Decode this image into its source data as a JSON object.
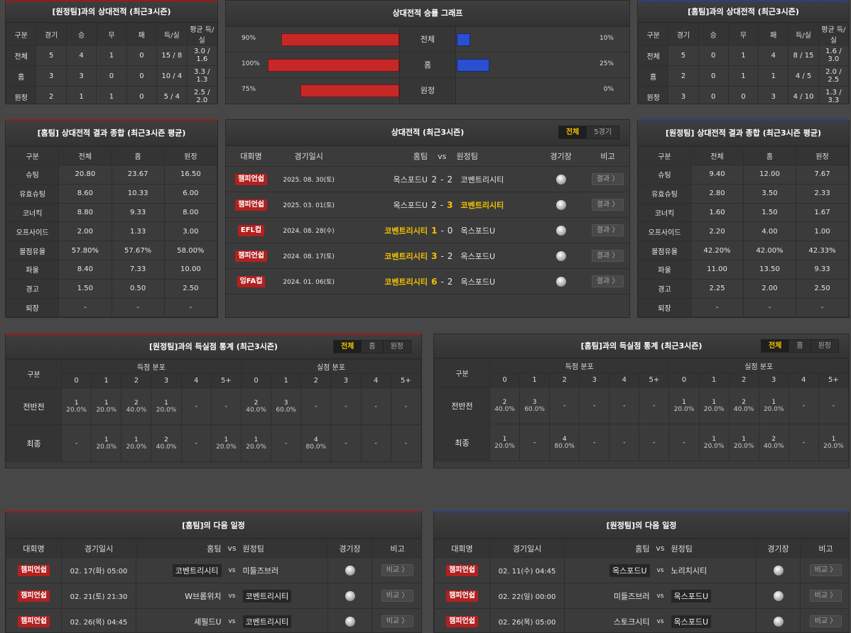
{
  "away_h2h": {
    "title": "[원정팀]과의 상대전적 (최근3시즌)",
    "headers": [
      "구분",
      "경기",
      "승",
      "무",
      "패",
      "득/실",
      "평균 득/실"
    ],
    "rows": [
      [
        "전체",
        "5",
        "4",
        "1",
        "0",
        "15 / 8",
        "3.0 / 1.6"
      ],
      [
        "홈",
        "3",
        "3",
        "0",
        "0",
        "10 / 4",
        "3.3 / 1.3"
      ],
      [
        "원정",
        "2",
        "1",
        "1",
        "0",
        "5 / 4",
        "2.5 / 2.0"
      ]
    ]
  },
  "home_h2h": {
    "title": "[홈팀]과의 상대전적 (최근3시즌)",
    "headers": [
      "구분",
      "경기",
      "승",
      "무",
      "패",
      "득/실",
      "평균 득/실"
    ],
    "rows": [
      [
        "전체",
        "5",
        "0",
        "1",
        "4",
        "8 / 15",
        "1.6 / 3.0"
      ],
      [
        "홈",
        "2",
        "0",
        "1",
        "1",
        "4 / 5",
        "2.0 / 2.5"
      ],
      [
        "원정",
        "3",
        "0",
        "0",
        "3",
        "4 / 10",
        "1.3 / 3.3"
      ]
    ]
  },
  "graph": {
    "title": "상대전적 승률 그래프",
    "colors": {
      "left": "#c62828",
      "right": "#2a4fcf"
    },
    "rows": [
      {
        "label": "전체",
        "left": "90%",
        "right": "10%",
        "left_val": 90,
        "right_val": 10
      },
      {
        "label": "홈",
        "left": "100%",
        "right": "25%",
        "left_val": 100,
        "right_val": 25
      },
      {
        "label": "원정",
        "left": "75%",
        "right": "0%",
        "left_val": 75,
        "right_val": 0
      }
    ]
  },
  "home_summary": {
    "title": "[홈팀] 상대전적 결과 종합 (최근3시즌 평균)",
    "headers": [
      "구분",
      "전체",
      "홈",
      "원정"
    ],
    "rows": [
      [
        "슈팅",
        "20.80",
        "23.67",
        "16.50"
      ],
      [
        "유효슈팅",
        "8.60",
        "10.33",
        "6.00"
      ],
      [
        "코너킥",
        "8.80",
        "9.33",
        "8.00"
      ],
      [
        "오프사이드",
        "2.00",
        "1.33",
        "3.00"
      ],
      [
        "볼점유율",
        "57.80%",
        "57.67%",
        "58.00%"
      ],
      [
        "파울",
        "8.40",
        "7.33",
        "10.00"
      ],
      [
        "경고",
        "1.50",
        "0.50",
        "2.50"
      ],
      [
        "퇴장",
        "-",
        "-",
        "-"
      ]
    ]
  },
  "away_summary": {
    "title": "[원정팀] 상대전적 결과 종합 (최근3시즌 평균)",
    "headers": [
      "구분",
      "전체",
      "홈",
      "원정"
    ],
    "rows": [
      [
        "슈팅",
        "9.40",
        "12.00",
        "7.67"
      ],
      [
        "유효슈팅",
        "2.80",
        "3.50",
        "2.33"
      ],
      [
        "코너킥",
        "1.60",
        "1.50",
        "1.67"
      ],
      [
        "오프사이드",
        "2.20",
        "4.00",
        "1.00"
      ],
      [
        "볼점유율",
        "42.20%",
        "42.00%",
        "42.33%"
      ],
      [
        "파울",
        "11.00",
        "13.50",
        "9.33"
      ],
      [
        "경고",
        "2.25",
        "2.00",
        "2.50"
      ],
      [
        "퇴장",
        "-",
        "-",
        "-"
      ]
    ]
  },
  "h2h_matches": {
    "title": "상대전적 (최근3시즌)",
    "tabs": [
      "전체",
      "5경기"
    ],
    "headers": {
      "league": "대회명",
      "date": "경기일시",
      "home": "홈팀",
      "vs": "vs",
      "away": "원정팀",
      "venue": "경기장",
      "note": "비고"
    },
    "button": "결과 〉",
    "rows": [
      {
        "league": "챔피언쉽",
        "date": "2025. 08. 30(토)",
        "home": "옥스포드U",
        "hs": "2",
        "as": "2",
        "away": "코벤트리시티",
        "win": "none"
      },
      {
        "league": "챔피언쉽",
        "date": "2025. 03. 01(토)",
        "home": "옥스포드U",
        "hs": "2",
        "as": "3",
        "away": "코벤트리시티",
        "win": "away"
      },
      {
        "league": "EFL컵",
        "date": "2024. 08. 28(수)",
        "home": "코벤트리시티",
        "hs": "1",
        "as": "0",
        "away": "옥스포드U",
        "win": "home"
      },
      {
        "league": "챔피언쉽",
        "date": "2024. 08. 17(토)",
        "home": "코벤트리시티",
        "hs": "3",
        "as": "2",
        "away": "옥스포드U",
        "win": "home"
      },
      {
        "league": "잉FA컵",
        "date": "2024. 01. 06(토)",
        "home": "코벤트리시티",
        "hs": "6",
        "as": "2",
        "away": "옥스포드U",
        "win": "home"
      }
    ]
  },
  "away_goals": {
    "title": "[원정팀]과의 득실점 통계 (최근3시즌)",
    "tabs": [
      "전체",
      "홈",
      "원정"
    ],
    "label": "구분",
    "scored": "득점 분포",
    "conceded": "실점 분포",
    "cols": [
      "0",
      "1",
      "2",
      "3",
      "4",
      "5+"
    ],
    "rows": [
      {
        "label": "전반전",
        "cells": [
          [
            "1",
            "20.0%"
          ],
          [
            "1",
            "20.0%"
          ],
          [
            "2",
            "40.0%"
          ],
          [
            "1",
            "20.0%"
          ],
          [
            "-",
            ""
          ],
          [
            "-",
            ""
          ],
          [
            "2",
            "40.0%"
          ],
          [
            "3",
            "60.0%"
          ],
          [
            "-",
            ""
          ],
          [
            "-",
            ""
          ],
          [
            "-",
            ""
          ],
          [
            "-",
            ""
          ]
        ]
      },
      {
        "label": "최종",
        "cells": [
          [
            "-",
            ""
          ],
          [
            "1",
            "20.0%"
          ],
          [
            "1",
            "20.0%"
          ],
          [
            "2",
            "40.0%"
          ],
          [
            "-",
            ""
          ],
          [
            "1",
            "20.0%"
          ],
          [
            "1",
            "20.0%"
          ],
          [
            "-",
            ""
          ],
          [
            "4",
            "80.0%"
          ],
          [
            "-",
            ""
          ],
          [
            "-",
            ""
          ],
          [
            "-",
            ""
          ]
        ]
      }
    ]
  },
  "home_goals": {
    "title": "[홈팀]과의 득실점 통계 (최근3시즌)",
    "tabs": [
      "전체",
      "홈",
      "원정"
    ],
    "label": "구분",
    "scored": "득점 분포",
    "conceded": "실점 분포",
    "cols": [
      "0",
      "1",
      "2",
      "3",
      "4",
      "5+"
    ],
    "rows": [
      {
        "label": "전반전",
        "cells": [
          [
            "2",
            "40.0%"
          ],
          [
            "3",
            "60.0%"
          ],
          [
            "-",
            ""
          ],
          [
            "-",
            ""
          ],
          [
            "-",
            ""
          ],
          [
            "-",
            ""
          ],
          [
            "1",
            "20.0%"
          ],
          [
            "1",
            "20.0%"
          ],
          [
            "2",
            "40.0%"
          ],
          [
            "1",
            "20.0%"
          ],
          [
            "-",
            ""
          ],
          [
            "-",
            ""
          ]
        ]
      },
      {
        "label": "최종",
        "cells": [
          [
            "1",
            "20.0%"
          ],
          [
            "-",
            ""
          ],
          [
            "4",
            "80.0%"
          ],
          [
            "-",
            ""
          ],
          [
            "-",
            ""
          ],
          [
            "-",
            ""
          ],
          [
            "-",
            ""
          ],
          [
            "1",
            "20.0%"
          ],
          [
            "1",
            "20.0%"
          ],
          [
            "2",
            "40.0%"
          ],
          [
            "-",
            ""
          ],
          [
            "1",
            "20.0%"
          ]
        ]
      }
    ]
  },
  "home_next": {
    "title": "[홈팀]의 다음 일정",
    "headers": {
      "league": "대회명",
      "date": "경기일시",
      "home": "홈팀",
      "vs": "vs",
      "away": "원정팀",
      "venue": "경기장",
      "note": "비고"
    },
    "button": "비교 〉",
    "rows": [
      {
        "league": "챔피언쉽",
        "date": "02. 17(화) 05:00",
        "home": "코벤트리시티",
        "away": "미들즈브러",
        "box": "home"
      },
      {
        "league": "챔피언쉽",
        "date": "02. 21(토) 21:30",
        "home": "W브롬위치",
        "away": "코벤트리시티",
        "box": "away"
      },
      {
        "league": "챔피언쉽",
        "date": "02. 26(목) 04:45",
        "home": "셰필드U",
        "away": "코벤트리시티",
        "box": "away"
      }
    ]
  },
  "away_next": {
    "title": "[원정팀]의 다음 일정",
    "headers": {
      "league": "대회명",
      "date": "경기일시",
      "home": "홈팀",
      "vs": "vs",
      "away": "원정팀",
      "venue": "경기장",
      "note": "비고"
    },
    "button": "비교 〉",
    "rows": [
      {
        "league": "챔피언쉽",
        "date": "02. 11(수) 04:45",
        "home": "옥스포드U",
        "away": "노리치시티",
        "box": "home"
      },
      {
        "league": "챔피언쉽",
        "date": "02. 22(일) 00:00",
        "home": "미들즈브러",
        "away": "옥스포드U",
        "box": "away"
      },
      {
        "league": "챔피언쉽",
        "date": "02. 26(목) 05:00",
        "home": "스토크시티",
        "away": "옥스포드U",
        "box": "away"
      }
    ]
  }
}
